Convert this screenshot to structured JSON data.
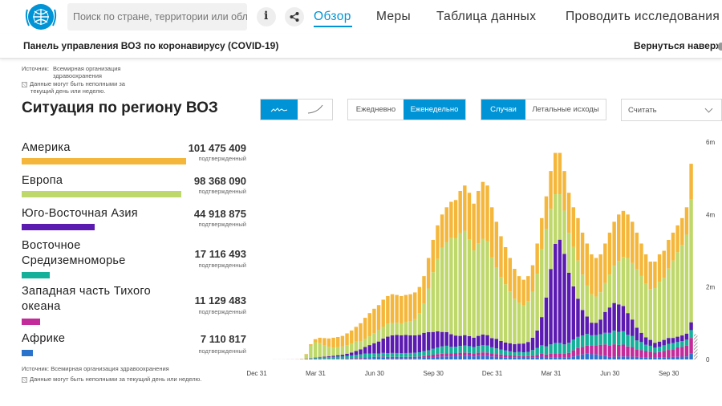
{
  "header": {
    "search_placeholder": "Поиск по стране, территории или области",
    "info_label": "i",
    "nav": [
      "Обзор",
      "Меры",
      "Таблица данных",
      "Проводить исследования"
    ]
  },
  "subheader": {
    "title": "Панель управления ВОЗ по коронавирусу (COVID-19)",
    "back_to_top": "Вернуться наверх"
  },
  "source_top": {
    "label": "Источник:",
    "org_line1": "Всемирная организация",
    "org_line2": "здравоохранения",
    "note_line1": "Данные могут быть неполными за",
    "note_line2": "текущий день или неделю."
  },
  "source_bottom": {
    "label": "Источник:",
    "org": "Всемирная организация здравоохранения",
    "note": "Данные могут быть неполными за текущий день или неделю."
  },
  "section_title": "Ситуация по региону ВОЗ",
  "controls": {
    "chart_type": [
      "line-chart-icon",
      "curve-chart-icon"
    ],
    "period": [
      "Ежедневно",
      "Еженедельно"
    ],
    "period_selected": "Еженедельно",
    "metric": [
      "Случаи",
      "Летальные исходы"
    ],
    "metric_selected": "Случаи",
    "count_dropdown": "Считать"
  },
  "colors": {
    "accent": "#0093d5",
    "americas": "#f5b73b",
    "europe": "#bfd86b",
    "sea": "#5b1bb0",
    "emr": "#15b09a",
    "wpr": "#c42b9a",
    "africa": "#2a73cc"
  },
  "regions": [
    {
      "name": "Америка",
      "value": "101 475 409",
      "sub": "подтвержденный",
      "share": 1.0,
      "color": "#f5b73b"
    },
    {
      "name": "Европа",
      "value": "98 368 090",
      "sub": "подтвержденный",
      "share": 0.969,
      "color": "#bfd86b"
    },
    {
      "name": "Юго-Восточная Азия",
      "value": "44 918 875",
      "sub": "подтвержденный",
      "share": 0.443,
      "color": "#5b1bb0"
    },
    {
      "name": "Восточное Средиземноморье",
      "value": "17 116 493",
      "sub": "подтвержденный",
      "share": 0.169,
      "color": "#15b09a"
    },
    {
      "name": "Западная часть Тихого океана",
      "value": "11 129 483",
      "sub": "подтвержденный",
      "share": 0.11,
      "color": "#c42b9a"
    },
    {
      "name": "Африке",
      "value": "7 110 817",
      "sub": "подтвержденный",
      "share": 0.07,
      "color": "#2a73cc"
    }
  ],
  "chart_data": {
    "type": "bar",
    "stacked": true,
    "title": "",
    "xlabel": "",
    "ylabel": "",
    "ylim": [
      0,
      6000000
    ],
    "y_ticks": [
      "0",
      "2m",
      "4m",
      "6m"
    ],
    "x_ticks": [
      "Dec 31",
      "Mar 31",
      "Jun 30",
      "Sep 30",
      "Dec 31",
      "Mar 31",
      "Jun 30",
      "Sep 30"
    ],
    "x_tick_weeks": [
      0,
      13,
      26,
      39,
      52,
      65,
      78,
      91
    ],
    "series_names": [
      "Африке",
      "Западная часть Тихого океана",
      "Восточное Средиземноморье",
      "Юго-Восточная Азия",
      "Европа",
      "Америка"
    ],
    "total_thousands": [
      1,
      1,
      1,
      2,
      3,
      5,
      20,
      150,
      420,
      560,
      600,
      590,
      580,
      600,
      620,
      650,
      720,
      800,
      900,
      1000,
      1150,
      1280,
      1400,
      1500,
      1650,
      1750,
      1800,
      1780,
      1750,
      1780,
      1800,
      1850,
      2000,
      2300,
      2800,
      3300,
      3700,
      4000,
      4200,
      4350,
      4400,
      4650,
      4800,
      4600,
      4300,
      4650,
      4900,
      4800,
      4200,
      3800,
      3400,
      3100,
      2800,
      2500,
      2300,
      2200,
      2300,
      2600,
      3200,
      3900,
      4500,
      5200,
      5700,
      5700,
      5200,
      4600,
      4200,
      3900,
      3500,
      3200,
      2900,
      2800,
      2900,
      3200,
      3500,
      3800,
      4000,
      4100,
      4000,
      3800,
      3500,
      3200,
      2900,
      2700,
      2700,
      2900,
      3000,
      3300,
      3500,
      3700,
      3900,
      4200,
      5400
    ],
    "share_americas": [
      0.1,
      0.1,
      0.1,
      0.1,
      0.1,
      0.1,
      0.1,
      0.1,
      0.1,
      0.15,
      0.25,
      0.35,
      0.4,
      0.45,
      0.45,
      0.45,
      0.45,
      0.45,
      0.45,
      0.5,
      0.5,
      0.5,
      0.48,
      0.46,
      0.45,
      0.44,
      0.44,
      0.43,
      0.43,
      0.42,
      0.41,
      0.4,
      0.36,
      0.33,
      0.3,
      0.27,
      0.25,
      0.23,
      0.23,
      0.23,
      0.24,
      0.25,
      0.26,
      0.28,
      0.3,
      0.31,
      0.32,
      0.32,
      0.33,
      0.33,
      0.33,
      0.33,
      0.33,
      0.33,
      0.32,
      0.32,
      0.3,
      0.28,
      0.26,
      0.22,
      0.2,
      0.2,
      0.2,
      0.2,
      0.21,
      0.24,
      0.26,
      0.3,
      0.33,
      0.36,
      0.38,
      0.38,
      0.36,
      0.34,
      0.33,
      0.32,
      0.32,
      0.31,
      0.3,
      0.3,
      0.29,
      0.28,
      0.28,
      0.28,
      0.27,
      0.26,
      0.25,
      0.24,
      0.22,
      0.2,
      0.19,
      0.18,
      0.18
    ],
    "share_sea": [
      0,
      0,
      0,
      0,
      0,
      0,
      0,
      0,
      0,
      0.01,
      0.02,
      0.03,
      0.04,
      0.05,
      0.06,
      0.07,
      0.08,
      0.1,
      0.12,
      0.14,
      0.16,
      0.18,
      0.2,
      0.22,
      0.24,
      0.26,
      0.27,
      0.28,
      0.28,
      0.28,
      0.27,
      0.26,
      0.24,
      0.22,
      0.18,
      0.14,
      0.12,
      0.1,
      0.09,
      0.08,
      0.07,
      0.06,
      0.06,
      0.06,
      0.06,
      0.06,
      0.06,
      0.06,
      0.06,
      0.07,
      0.07,
      0.07,
      0.08,
      0.09,
      0.1,
      0.11,
      0.12,
      0.13,
      0.15,
      0.2,
      0.3,
      0.4,
      0.48,
      0.5,
      0.48,
      0.42,
      0.35,
      0.27,
      0.2,
      0.15,
      0.12,
      0.12,
      0.14,
      0.18,
      0.2,
      0.2,
      0.19,
      0.17,
      0.15,
      0.12,
      0.1,
      0.08,
      0.07,
      0.06,
      0.05,
      0.05,
      0.05,
      0.05,
      0.04,
      0.04,
      0.04,
      0.04,
      0.04
    ],
    "share_emr": [
      0,
      0,
      0,
      0,
      0,
      0,
      0,
      0.02,
      0.04,
      0.05,
      0.06,
      0.07,
      0.08,
      0.09,
      0.1,
      0.1,
      0.1,
      0.1,
      0.1,
      0.1,
      0.09,
      0.08,
      0.07,
      0.06,
      0.06,
      0.06,
      0.06,
      0.06,
      0.06,
      0.06,
      0.06,
      0.06,
      0.06,
      0.06,
      0.05,
      0.05,
      0.05,
      0.05,
      0.05,
      0.04,
      0.04,
      0.04,
      0.04,
      0.04,
      0.04,
      0.04,
      0.04,
      0.04,
      0.04,
      0.04,
      0.04,
      0.04,
      0.04,
      0.04,
      0.05,
      0.05,
      0.05,
      0.06,
      0.06,
      0.06,
      0.05,
      0.05,
      0.05,
      0.05,
      0.05,
      0.06,
      0.07,
      0.08,
      0.09,
      0.1,
      0.1,
      0.1,
      0.1,
      0.1,
      0.1,
      0.1,
      0.09,
      0.09,
      0.08,
      0.08,
      0.07,
      0.07,
      0.06,
      0.06,
      0.05,
      0.05,
      0.05,
      0.05,
      0.05,
      0.04,
      0.04,
      0.04,
      0.04
    ],
    "share_wpr": [
      0.9,
      0.9,
      0.9,
      0.85,
      0.8,
      0.6,
      0.3,
      0.1,
      0.04,
      0.03,
      0.03,
      0.02,
      0.02,
      0.02,
      0.02,
      0.02,
      0.02,
      0.02,
      0.02,
      0.02,
      0.02,
      0.02,
      0.02,
      0.02,
      0.02,
      0.02,
      0.02,
      0.02,
      0.02,
      0.02,
      0.02,
      0.02,
      0.02,
      0.02,
      0.02,
      0.02,
      0.02,
      0.02,
      0.02,
      0.02,
      0.02,
      0.02,
      0.02,
      0.02,
      0.02,
      0.02,
      0.02,
      0.02,
      0.02,
      0.02,
      0.02,
      0.02,
      0.02,
      0.02,
      0.02,
      0.02,
      0.02,
      0.02,
      0.02,
      0.02,
      0.02,
      0.02,
      0.02,
      0.02,
      0.02,
      0.03,
      0.04,
      0.05,
      0.06,
      0.07,
      0.08,
      0.09,
      0.1,
      0.1,
      0.09,
      0.09,
      0.08,
      0.08,
      0.07,
      0.07,
      0.06,
      0.06,
      0.06,
      0.06,
      0.05,
      0.05,
      0.06,
      0.06,
      0.06,
      0.07,
      0.07,
      0.07,
      0.08
    ],
    "share_africa": [
      0,
      0,
      0,
      0,
      0,
      0,
      0,
      0,
      0.01,
      0.01,
      0.01,
      0.01,
      0.01,
      0.01,
      0.01,
      0.01,
      0.02,
      0.02,
      0.02,
      0.02,
      0.03,
      0.03,
      0.03,
      0.03,
      0.03,
      0.02,
      0.02,
      0.02,
      0.02,
      0.02,
      0.02,
      0.02,
      0.02,
      0.02,
      0.02,
      0.02,
      0.02,
      0.02,
      0.02,
      0.02,
      0.02,
      0.02,
      0.02,
      0.02,
      0.02,
      0.02,
      0.02,
      0.02,
      0.02,
      0.02,
      0.02,
      0.02,
      0.02,
      0.02,
      0.02,
      0.02,
      0.02,
      0.02,
      0.02,
      0.02,
      0.01,
      0.01,
      0.01,
      0.01,
      0.01,
      0.01,
      0.02,
      0.03,
      0.04,
      0.05,
      0.05,
      0.05,
      0.04,
      0.03,
      0.02,
      0.02,
      0.02,
      0.02,
      0.02,
      0.02,
      0.02,
      0.02,
      0.02,
      0.02,
      0.02,
      0.02,
      0.02,
      0.02,
      0.02,
      0.02,
      0.02,
      0.02,
      0.03
    ]
  }
}
